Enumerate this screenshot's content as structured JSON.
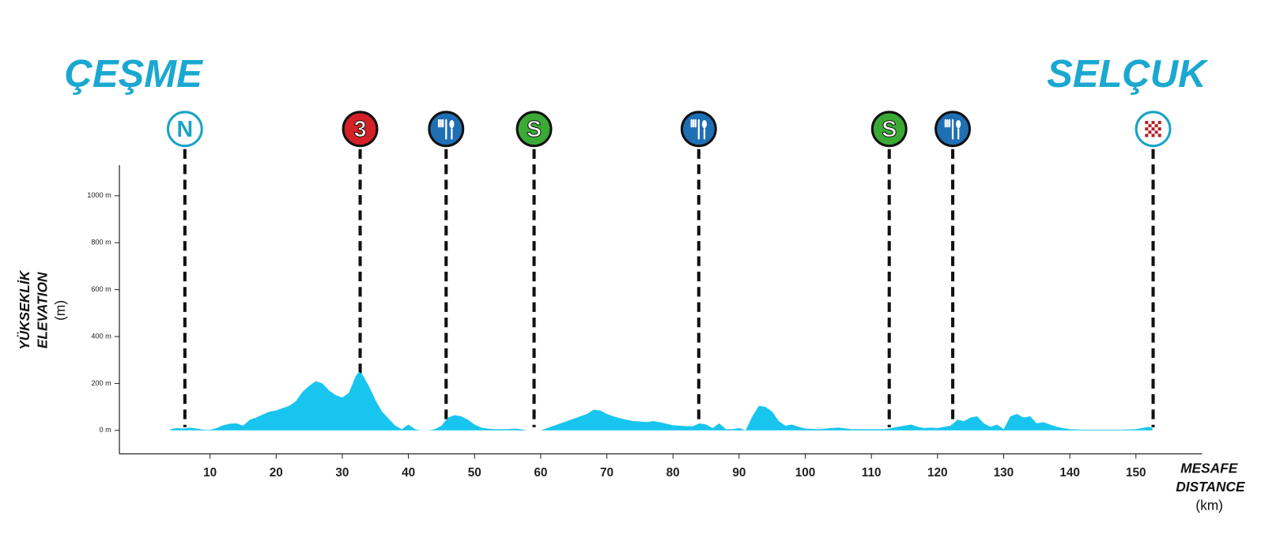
{
  "chart_data": {
    "type": "area",
    "start_title": "ÇEŞME",
    "finish_title": "SELÇUK",
    "y_label": [
      "YÜKSEKLİK",
      "ELEVATION",
      "(m)"
    ],
    "x_label": [
      "MESAFE",
      "DISTANCE",
      "(km)"
    ],
    "color": "#17c5ef",
    "xlim": [
      -3.7,
      160
    ],
    "ylim": [
      -100,
      1130
    ],
    "xticks": [
      10,
      20,
      30,
      40,
      50,
      60,
      70,
      80,
      90,
      100,
      110,
      120,
      130,
      140,
      150
    ],
    "yticks": [
      {
        "value": 0,
        "label": "0 m"
      },
      {
        "value": 200,
        "label": "200 m"
      },
      {
        "value": 400,
        "label": "400 m"
      },
      {
        "value": 600,
        "label": "600 m"
      },
      {
        "value": 800,
        "label": "800 m"
      },
      {
        "value": 1000,
        "label": "1000 m"
      }
    ],
    "x": [
      4,
      5,
      6,
      7,
      8,
      9,
      10,
      11,
      12,
      13,
      14,
      15,
      16,
      17,
      18,
      19,
      20,
      21,
      22,
      23,
      24,
      25,
      26,
      27,
      28,
      29,
      30,
      31,
      32,
      32.5,
      33,
      34,
      35,
      36,
      37,
      38,
      39,
      40,
      41,
      42,
      43,
      44,
      45,
      46,
      47,
      48,
      49,
      50,
      51,
      52,
      53,
      54,
      55,
      56,
      57,
      58,
      59,
      60,
      61,
      62,
      63,
      64,
      65,
      66,
      67,
      68,
      69,
      70,
      71,
      72,
      73,
      74,
      75,
      76,
      77,
      78,
      79,
      80,
      81,
      82,
      83,
      84,
      85,
      86,
      87,
      88,
      89,
      90,
      91,
      92,
      93,
      94,
      95,
      96,
      97,
      98,
      99,
      100,
      102,
      105,
      107,
      110,
      112,
      113,
      114,
      115,
      116,
      117,
      118,
      119,
      120,
      121,
      122,
      123,
      124,
      125,
      126,
      127,
      128,
      129,
      130,
      131,
      132,
      133,
      134,
      135,
      136,
      137,
      138,
      139,
      140,
      142,
      145,
      148,
      150,
      152,
      152.5
    ],
    "values": [
      5,
      10,
      8,
      12,
      8,
      3,
      2,
      10,
      22,
      28,
      30,
      20,
      45,
      55,
      68,
      80,
      85,
      95,
      105,
      125,
      165,
      190,
      210,
      200,
      170,
      150,
      140,
      160,
      230,
      250,
      240,
      190,
      130,
      80,
      50,
      20,
      5,
      25,
      5,
      0,
      0,
      5,
      20,
      55,
      65,
      60,
      45,
      25,
      12,
      8,
      5,
      5,
      5,
      8,
      5,
      0,
      0,
      0,
      10,
      20,
      30,
      40,
      50,
      60,
      70,
      88,
      85,
      70,
      60,
      52,
      45,
      40,
      38,
      35,
      40,
      35,
      28,
      22,
      20,
      18,
      18,
      30,
      25,
      10,
      30,
      5,
      5,
      10,
      0,
      60,
      105,
      100,
      80,
      40,
      20,
      25,
      15,
      8,
      5,
      12,
      5,
      5,
      5,
      10,
      15,
      20,
      25,
      15,
      10,
      12,
      10,
      15,
      20,
      45,
      40,
      55,
      60,
      30,
      15,
      25,
      5,
      60,
      70,
      55,
      60,
      30,
      35,
      25,
      15,
      10,
      5,
      3,
      3,
      3,
      5,
      15,
      10
    ],
    "markers": [
      {
        "x": 6.2,
        "label": "N",
        "style": "start"
      },
      {
        "x": 32.7,
        "label": "3",
        "style": "climb"
      },
      {
        "x": 45.7,
        "style": "food"
      },
      {
        "x": 59,
        "label": "S",
        "style": "sprint"
      },
      {
        "x": 83.9,
        "style": "food"
      },
      {
        "x": 112.7,
        "label": "S",
        "style": "sprint"
      },
      {
        "x": 122.3,
        "style": "food"
      },
      {
        "x": 152.6,
        "style": "finish"
      }
    ]
  }
}
